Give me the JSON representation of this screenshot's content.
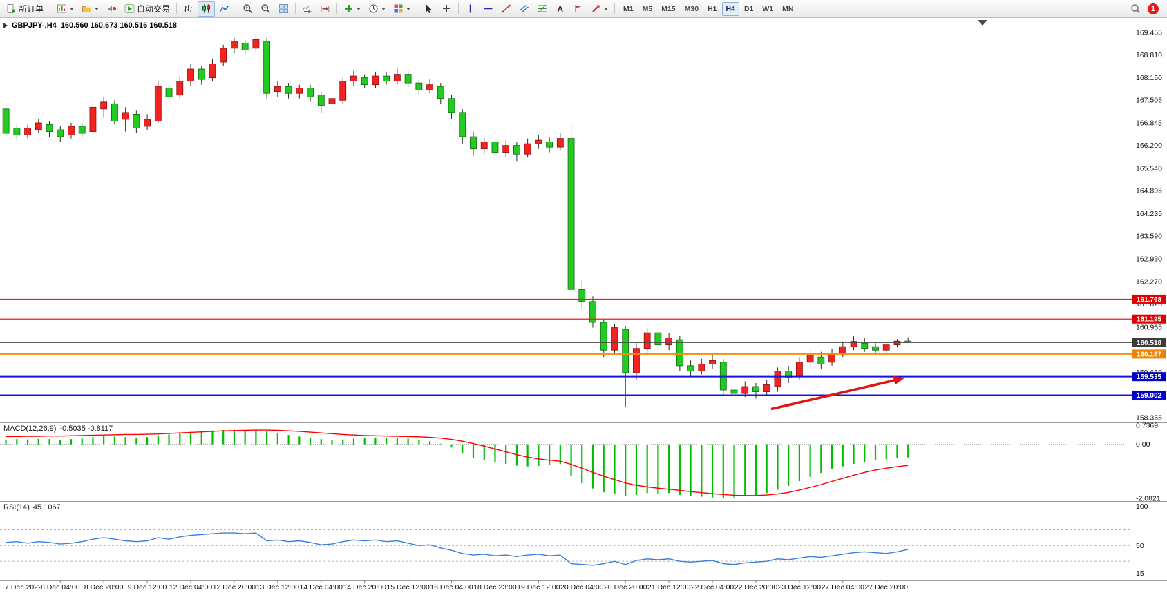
{
  "toolbar": {
    "new_order_label": "新订单",
    "autotrading_label": "自动交易",
    "text_tool_glyph": "A",
    "timeframes": [
      "M1",
      "M5",
      "M15",
      "M30",
      "H1",
      "H4",
      "D1",
      "W1",
      "MN"
    ],
    "active_timeframe": "H4",
    "notification_count": "1"
  },
  "chart_header": {
    "symbol_tf": "GBPJPY-,H4",
    "ohlc": "160.560 160.673 160.516 160.518"
  },
  "chart_data": {
    "type": "candlestick",
    "symbol": "GBPJPY-",
    "timeframe": "H4",
    "title": "GBPJPY-,H4 160.560 160.673 160.516 160.518",
    "ylim": [
      158.355,
      169.455
    ],
    "price_axis_ticks": [
      169.455,
      168.81,
      168.15,
      167.505,
      166.845,
      166.2,
      165.54,
      164.895,
      164.235,
      163.59,
      162.93,
      162.27,
      161.625,
      160.965,
      159.66,
      158.355
    ],
    "bull_color": "#f52222",
    "bull_border": "#8a0f0f",
    "bear_color": "#23cb23",
    "bear_border": "#0b6b0b",
    "wick_color": "#2b2b2b",
    "candles": [
      [
        167.25,
        167.35,
        166.45,
        166.55
      ],
      [
        166.7,
        166.8,
        166.35,
        166.5
      ],
      [
        166.5,
        166.8,
        166.4,
        166.7
      ],
      [
        166.65,
        166.95,
        166.55,
        166.85
      ],
      [
        166.8,
        166.9,
        166.45,
        166.6
      ],
      [
        166.65,
        166.75,
        166.3,
        166.45
      ],
      [
        166.5,
        166.85,
        166.4,
        166.75
      ],
      [
        166.75,
        166.85,
        166.45,
        166.55
      ],
      [
        166.6,
        167.45,
        166.5,
        167.3
      ],
      [
        167.25,
        167.6,
        167.0,
        167.45
      ],
      [
        167.4,
        167.5,
        166.8,
        166.9
      ],
      [
        166.95,
        167.3,
        166.6,
        167.15
      ],
      [
        167.1,
        167.2,
        166.55,
        166.7
      ],
      [
        166.75,
        167.1,
        166.65,
        166.95
      ],
      [
        166.9,
        168.05,
        166.85,
        167.9
      ],
      [
        167.85,
        167.95,
        167.4,
        167.6
      ],
      [
        167.65,
        168.2,
        167.55,
        168.05
      ],
      [
        168.05,
        168.55,
        167.9,
        168.4
      ],
      [
        168.4,
        168.5,
        167.95,
        168.1
      ],
      [
        168.15,
        168.7,
        168.05,
        168.55
      ],
      [
        168.6,
        169.1,
        168.5,
        169.0
      ],
      [
        169.0,
        169.3,
        168.85,
        169.2
      ],
      [
        169.15,
        169.25,
        168.8,
        168.95
      ],
      [
        169.0,
        169.4,
        168.9,
        169.25
      ],
      [
        169.2,
        169.3,
        167.55,
        167.7
      ],
      [
        167.75,
        168.05,
        167.6,
        167.9
      ],
      [
        167.9,
        168.0,
        167.55,
        167.7
      ],
      [
        167.7,
        167.95,
        167.55,
        167.85
      ],
      [
        167.85,
        167.95,
        167.45,
        167.6
      ],
      [
        167.65,
        167.75,
        167.15,
        167.35
      ],
      [
        167.4,
        167.65,
        167.25,
        167.55
      ],
      [
        167.5,
        168.15,
        167.4,
        168.05
      ],
      [
        168.05,
        168.35,
        167.9,
        168.2
      ],
      [
        168.15,
        168.25,
        167.85,
        167.95
      ],
      [
        167.95,
        168.3,
        167.85,
        168.2
      ],
      [
        168.2,
        168.3,
        167.95,
        168.05
      ],
      [
        168.05,
        168.45,
        167.95,
        168.25
      ],
      [
        168.25,
        168.35,
        167.85,
        168.0
      ],
      [
        168.0,
        168.1,
        167.65,
        167.8
      ],
      [
        167.8,
        168.1,
        167.7,
        167.95
      ],
      [
        167.9,
        168.0,
        167.4,
        167.55
      ],
      [
        167.55,
        167.65,
        166.95,
        167.15
      ],
      [
        167.15,
        167.25,
        166.25,
        166.45
      ],
      [
        166.45,
        166.6,
        165.9,
        166.1
      ],
      [
        166.1,
        166.45,
        165.95,
        166.3
      ],
      [
        166.3,
        166.4,
        165.8,
        166.0
      ],
      [
        166.0,
        166.35,
        165.85,
        166.2
      ],
      [
        166.2,
        166.3,
        165.75,
        165.95
      ],
      [
        165.95,
        166.4,
        165.85,
        166.25
      ],
      [
        166.25,
        166.5,
        166.1,
        166.35
      ],
      [
        166.3,
        166.45,
        166.0,
        166.15
      ],
      [
        166.15,
        166.55,
        166.05,
        166.4
      ],
      [
        166.4,
        166.8,
        161.95,
        162.05
      ],
      [
        162.05,
        162.3,
        161.5,
        161.7
      ],
      [
        161.7,
        161.85,
        160.95,
        161.1
      ],
      [
        161.1,
        161.2,
        160.1,
        160.3
      ],
      [
        160.3,
        161.05,
        160.15,
        160.95
      ],
      [
        160.9,
        161.0,
        158.65,
        159.65
      ],
      [
        159.65,
        160.5,
        159.45,
        160.35
      ],
      [
        160.35,
        160.95,
        160.2,
        160.8
      ],
      [
        160.8,
        160.9,
        160.3,
        160.45
      ],
      [
        160.45,
        160.8,
        160.3,
        160.65
      ],
      [
        160.6,
        160.7,
        159.7,
        159.85
      ],
      [
        159.85,
        160.0,
        159.55,
        159.7
      ],
      [
        159.7,
        160.05,
        159.6,
        159.9
      ],
      [
        159.9,
        160.15,
        159.75,
        160.0
      ],
      [
        159.95,
        160.05,
        159.0,
        159.15
      ],
      [
        159.15,
        159.3,
        158.85,
        159.05
      ],
      [
        159.05,
        159.4,
        158.95,
        159.25
      ],
      [
        159.25,
        159.35,
        158.9,
        159.1
      ],
      [
        159.1,
        159.45,
        159.0,
        159.3
      ],
      [
        159.25,
        159.8,
        159.1,
        159.7
      ],
      [
        159.7,
        159.85,
        159.35,
        159.5
      ],
      [
        159.55,
        160.1,
        159.45,
        159.95
      ],
      [
        159.95,
        160.3,
        159.8,
        160.15
      ],
      [
        160.1,
        160.25,
        159.75,
        159.9
      ],
      [
        159.95,
        160.35,
        159.85,
        160.2
      ],
      [
        160.2,
        160.55,
        160.1,
        160.4
      ],
      [
        160.4,
        160.7,
        160.3,
        160.55
      ],
      [
        160.5,
        160.65,
        160.25,
        160.35
      ],
      [
        160.4,
        160.5,
        160.15,
        160.3
      ],
      [
        160.3,
        160.55,
        160.2,
        160.45
      ],
      [
        160.45,
        160.62,
        160.38,
        160.56
      ],
      [
        160.56,
        160.673,
        160.516,
        160.518
      ]
    ],
    "hlines": [
      {
        "price": 161.768,
        "color": "#ff1414",
        "width": 1.2,
        "tag_bg": "#e00000"
      },
      {
        "price": 161.195,
        "color": "#ff1414",
        "width": 1.2,
        "tag_bg": "#e00000"
      },
      {
        "price": 160.187,
        "color": "#ff8c00",
        "width": 2,
        "tag_bg": "#f08200"
      },
      {
        "price": 159.535,
        "color": "#1414e0",
        "width": 2,
        "tag_bg": "#0000cc"
      },
      {
        "price": 159.002,
        "color": "#1414e0",
        "width": 2,
        "tag_bg": "#0000cc"
      }
    ],
    "current_price_line": {
      "price": 160.518,
      "color": "#4a4a4a",
      "tag_bg": "#3c3c3c"
    },
    "arrow": {
      "from_index": 70.4,
      "from_price": 158.6,
      "to_index": 82.7,
      "to_price": 159.5,
      "color": "#e01616"
    },
    "time_label_indices": [
      1,
      5,
      9,
      13,
      17,
      21,
      25,
      29,
      33,
      37,
      41,
      45,
      49,
      53,
      57,
      61,
      65,
      69,
      73,
      77,
      81
    ],
    "time_labels": [
      "7 Dec 2022",
      "8 Dec 04:00",
      "8 Dec 20:00",
      "9 Dec 12:00",
      "12 Dec 04:00",
      "12 Dec 20:00",
      "13 Dec 12:00",
      "14 Dec 04:00",
      "14 Dec 20:00",
      "15 Dec 12:00",
      "16 Dec 04:00",
      "18 Dec 23:00",
      "19 Dec 12:00",
      "20 Dec 04:00",
      "20 Dec 20:00",
      "21 Dec 12:00",
      "22 Dec 04:00",
      "22 Dec 20:00",
      "23 Dec 12:00",
      "27 Dec 04:00",
      "27 Dec 20:00"
    ],
    "macd": {
      "label": "MACD(12,26,9)",
      "values_text": "-0.5035 -0.8117",
      "ylim": [
        -2.0821,
        0.7369
      ],
      "axis_ticks": [
        {
          "v": 0.7369,
          "t": "0.7369"
        },
        {
          "v": 0,
          "t": "0.00"
        },
        {
          "v": -2.0821,
          "t": "-2.0821"
        }
      ],
      "histogram_color": "#00be00",
      "signal_color": "#ff0000",
      "main": [
        0.18,
        0.2,
        0.19,
        0.21,
        0.2,
        0.18,
        0.2,
        0.22,
        0.28,
        0.32,
        0.3,
        0.28,
        0.26,
        0.28,
        0.35,
        0.38,
        0.42,
        0.48,
        0.5,
        0.53,
        0.55,
        0.56,
        0.55,
        0.56,
        0.5,
        0.42,
        0.36,
        0.3,
        0.26,
        0.2,
        0.16,
        0.18,
        0.22,
        0.24,
        0.26,
        0.25,
        0.26,
        0.22,
        0.16,
        0.12,
        0.02,
        -0.12,
        -0.35,
        -0.52,
        -0.6,
        -0.7,
        -0.75,
        -0.82,
        -0.85,
        -0.83,
        -0.8,
        -0.76,
        -1.2,
        -1.5,
        -1.7,
        -1.85,
        -1.9,
        -2.0,
        -1.95,
        -1.88,
        -1.9,
        -1.88,
        -1.95,
        -2.0,
        -2.02,
        -2.05,
        -2.08,
        -2.05,
        -2.0,
        -1.95,
        -1.88,
        -1.75,
        -1.6,
        -1.42,
        -1.25,
        -1.1,
        -0.95,
        -0.85,
        -0.75,
        -0.68,
        -0.62,
        -0.58,
        -0.54,
        -0.5035
      ],
      "signal": [
        0.3,
        0.3,
        0.31,
        0.31,
        0.32,
        0.32,
        0.33,
        0.34,
        0.35,
        0.36,
        0.37,
        0.38,
        0.38,
        0.39,
        0.4,
        0.42,
        0.44,
        0.46,
        0.48,
        0.5,
        0.52,
        0.53,
        0.54,
        0.55,
        0.55,
        0.54,
        0.52,
        0.5,
        0.47,
        0.44,
        0.41,
        0.38,
        0.36,
        0.34,
        0.33,
        0.32,
        0.31,
        0.3,
        0.29,
        0.27,
        0.24,
        0.19,
        0.12,
        0.03,
        -0.07,
        -0.18,
        -0.29,
        -0.4,
        -0.49,
        -0.56,
        -0.61,
        -0.65,
        -0.77,
        -0.92,
        -1.08,
        -1.23,
        -1.36,
        -1.49,
        -1.58,
        -1.64,
        -1.69,
        -1.73,
        -1.77,
        -1.82,
        -1.86,
        -1.9,
        -1.93,
        -1.96,
        -1.97,
        -1.97,
        -1.95,
        -1.91,
        -1.85,
        -1.76,
        -1.66,
        -1.55,
        -1.43,
        -1.31,
        -1.19,
        -1.08,
        -0.99,
        -0.92,
        -0.86,
        -0.8117
      ]
    },
    "rsi": {
      "label": "RSI(14)",
      "value_text": "45.1067",
      "ylim": [
        10,
        102
      ],
      "levels": [
        70,
        50,
        30
      ],
      "axis_ticks": [
        {
          "v": 100,
          "t": "100"
        },
        {
          "v": 50,
          "t": "50"
        },
        {
          "v": 15,
          "t": "15"
        }
      ],
      "line_color": "#3d7edb",
      "values": [
        54,
        55,
        53,
        55,
        54,
        52,
        53,
        55,
        58,
        60,
        58,
        56,
        55,
        56,
        60,
        58,
        61,
        63,
        64,
        65,
        66,
        66,
        65,
        66,
        56,
        57,
        55,
        56,
        54,
        51,
        52,
        55,
        57,
        56,
        57,
        55,
        56,
        53,
        50,
        51,
        47,
        44,
        40,
        38,
        39,
        37,
        38,
        36,
        38,
        39,
        37,
        38,
        27,
        26,
        25,
        27,
        30,
        26,
        31,
        33,
        32,
        33,
        30,
        29,
        30,
        31,
        27,
        26,
        28,
        29,
        30,
        33,
        32,
        34,
        36,
        35,
        37,
        39,
        41,
        42,
        41,
        40,
        42,
        45.1067
      ]
    }
  }
}
